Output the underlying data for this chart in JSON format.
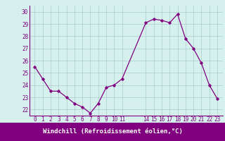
{
  "x": [
    0,
    1,
    2,
    3,
    4,
    5,
    6,
    7,
    8,
    9,
    10,
    11,
    14,
    15,
    16,
    17,
    18,
    19,
    20,
    21,
    22,
    23
  ],
  "y": [
    25.5,
    24.5,
    23.5,
    23.5,
    23.0,
    22.5,
    22.2,
    21.7,
    22.5,
    23.8,
    24.0,
    24.5,
    29.1,
    29.4,
    29.3,
    29.1,
    29.8,
    27.8,
    27.0,
    25.8,
    24.0,
    22.9
  ],
  "line_color": "#800080",
  "marker": "D",
  "marker_size": 1.8,
  "linewidth": 0.9,
  "ylim": [
    21.5,
    30.5
  ],
  "yticks": [
    22,
    23,
    24,
    25,
    26,
    27,
    28,
    29,
    30
  ],
  "xticks": [
    0,
    1,
    2,
    3,
    4,
    5,
    6,
    7,
    8,
    9,
    10,
    11,
    14,
    15,
    16,
    17,
    18,
    19,
    20,
    21,
    22,
    23
  ],
  "xlabel": "Windchill (Refroidissement éolien,°C)",
  "bg_color": "#d6f0ee",
  "grid_color": "#aacccc",
  "tick_color": "#800080",
  "xlabel_bg": "#800080",
  "xlabel_fg": "#ffffff",
  "tick_fontsize": 5.5,
  "xlabel_fontsize": 6.5
}
